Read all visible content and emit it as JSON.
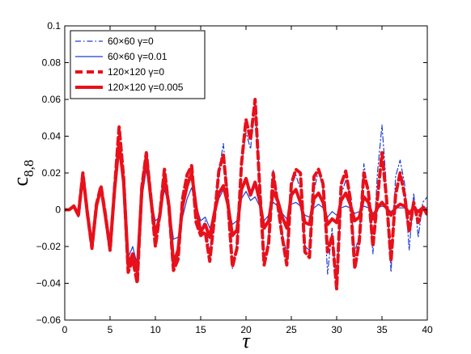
{
  "chart_data": {
    "type": "line",
    "title": "",
    "xlabel": "τ",
    "ylabel_main": "c",
    "ylabel_sub": "8,8",
    "xlim": [
      0,
      40
    ],
    "ylim": [
      -0.06,
      0.1
    ],
    "xticks": [
      0,
      5,
      10,
      15,
      20,
      25,
      30,
      35,
      40
    ],
    "xtick_labels": [
      "0",
      "5",
      "10",
      "15",
      "20",
      "25",
      "30",
      "35",
      "40"
    ],
    "yticks": [
      -0.06,
      -0.04,
      -0.02,
      0,
      0.02,
      0.04,
      0.06,
      0.08,
      0.1
    ],
    "ytick_labels": [
      "−0.06",
      "−0.04",
      "−0.02",
      "0",
      "0.02",
      "0.04",
      "0.06",
      "0.08",
      "0.1"
    ],
    "grid": false,
    "legend_position": "top-left",
    "series": [
      {
        "name": "60×60 γ=0",
        "color": "#1f3fd6",
        "style": "dashdot",
        "x": [
          0,
          0.5,
          1,
          1.5,
          2,
          2.5,
          3,
          3.5,
          4,
          4.5,
          5,
          5.5,
          6,
          6.5,
          7,
          7.5,
          8,
          8.5,
          9,
          9.5,
          10,
          10.5,
          11,
          11.5,
          12,
          12.5,
          13,
          13.5,
          14,
          14.5,
          15,
          15.5,
          16,
          16.5,
          17,
          17.5,
          18,
          18.5,
          19,
          19.5,
          20,
          20.5,
          21,
          21.5,
          22,
          22.5,
          23,
          23.5,
          24,
          24.5,
          25,
          25.5,
          26,
          26.5,
          27,
          27.5,
          28,
          28.5,
          29,
          29.5,
          30,
          30.5,
          31,
          31.5,
          32,
          32.5,
          33,
          33.5,
          34,
          34.5,
          35,
          35.5,
          36,
          36.5,
          37,
          37.5,
          38,
          38.5,
          39,
          39.5,
          40
        ],
        "y": [
          0,
          0,
          0.001,
          -0.004,
          0.019,
          -0.003,
          -0.02,
          0.002,
          0.012,
          -0.004,
          -0.021,
          0.012,
          0.036,
          0.016,
          -0.031,
          -0.025,
          -0.035,
          0.011,
          0.028,
          0.006,
          -0.017,
          -0.002,
          0.02,
          0.001,
          -0.032,
          -0.025,
          0.006,
          0.018,
          0.016,
          -0.006,
          -0.011,
          -0.006,
          -0.024,
          -0.004,
          0.021,
          0.036,
          0.008,
          -0.032,
          -0.018,
          0.023,
          0.042,
          0.033,
          0.059,
          0.015,
          -0.028,
          -0.015,
          0.022,
          0.003,
          -0.013,
          -0.024,
          0.013,
          0.019,
          0.011,
          -0.02,
          -0.022,
          0.01,
          0.022,
          0.011,
          -0.035,
          -0.01,
          -0.042,
          0.008,
          0.016,
          0.008,
          -0.023,
          -0.014,
          0.025,
          0.01,
          -0.024,
          0.02,
          0.046,
          0.012,
          -0.034,
          0.018,
          0.027,
          0.014,
          -0.022,
          0.009,
          -0.015,
          0.004,
          0.007
        ]
      },
      {
        "name": "60×60 γ=0.01",
        "color": "#1f3fd6",
        "style": "solid",
        "x": [
          0,
          0.5,
          1,
          1.5,
          2,
          2.5,
          3,
          3.5,
          4,
          4.5,
          5,
          5.5,
          6,
          6.5,
          7,
          7.5,
          8,
          8.5,
          9,
          9.5,
          10,
          10.5,
          11,
          11.5,
          12,
          12.5,
          13,
          13.5,
          14,
          14.5,
          15,
          15.5,
          16,
          16.5,
          17,
          17.5,
          18,
          18.5,
          19,
          19.5,
          20,
          20.5,
          21,
          21.5,
          22,
          22.5,
          23,
          23.5,
          24,
          24.5,
          25,
          25.5,
          26,
          26.5,
          27,
          27.5,
          28,
          28.5,
          29,
          29.5,
          30,
          30.5,
          31,
          31.5,
          32,
          32.5,
          33,
          33.5,
          34,
          34.5,
          35,
          35.5,
          36,
          36.5,
          37,
          37.5,
          38,
          38.5,
          39,
          39.5,
          40
        ],
        "y": [
          0,
          0,
          0.001,
          -0.004,
          0.018,
          -0.003,
          -0.018,
          0.001,
          0.01,
          -0.005,
          -0.02,
          0.01,
          0.033,
          0.014,
          -0.026,
          -0.02,
          -0.03,
          0.006,
          0.022,
          0.005,
          -0.006,
          -0.004,
          0.011,
          0.002,
          -0.016,
          -0.015,
          -0.004,
          0.006,
          0.012,
          0.002,
          -0.006,
          -0.004,
          -0.01,
          -0.003,
          0.006,
          0.011,
          0.002,
          -0.008,
          -0.006,
          0.006,
          0.01,
          0.005,
          0.007,
          0.002,
          -0.006,
          -0.003,
          0.004,
          0.002,
          -0.002,
          -0.005,
          0.003,
          0.004,
          0.002,
          -0.003,
          -0.004,
          0.001,
          0.003,
          0.001,
          -0.004,
          -0.001,
          -0.003,
          0.001,
          0.002,
          0.001,
          -0.002,
          -0.001,
          0.002,
          0.001,
          -0.002,
          0.001,
          0.002,
          0.001,
          -0.001,
          0.001,
          0.001,
          0.001,
          -0.001,
          0.001,
          -0.001,
          0.001,
          0.001
        ]
      },
      {
        "name": "120×120 γ=0",
        "color": "#e8101a",
        "style": "dash",
        "x": [
          0,
          0.5,
          1,
          1.5,
          2,
          2.5,
          3,
          3.5,
          4,
          4.5,
          5,
          5.5,
          6,
          6.5,
          7,
          7.5,
          8,
          8.5,
          9,
          9.5,
          10,
          10.5,
          11,
          11.5,
          12,
          12.5,
          13,
          13.5,
          14,
          14.5,
          15,
          15.5,
          16,
          16.5,
          17,
          17.5,
          18,
          18.5,
          19,
          19.5,
          20,
          20.5,
          21,
          21.5,
          22,
          22.5,
          23,
          23.5,
          24,
          24.5,
          25,
          25.5,
          26,
          26.5,
          27,
          27.5,
          28,
          28.5,
          29,
          29.5,
          30,
          30.5,
          31,
          31.5,
          32,
          32.5,
          33,
          33.5,
          34,
          34.5,
          35,
          35.5,
          36,
          36.5,
          37,
          37.5,
          38,
          38.5,
          39,
          39.5,
          40
        ],
        "y": [
          0,
          0,
          0.002,
          -0.003,
          0.02,
          -0.002,
          -0.021,
          0.003,
          0.013,
          -0.003,
          -0.022,
          0.012,
          0.045,
          0.017,
          -0.034,
          -0.027,
          -0.04,
          0.012,
          0.031,
          0.007,
          -0.02,
          -0.002,
          0.022,
          0.001,
          -0.033,
          -0.027,
          0.006,
          0.019,
          0.024,
          -0.007,
          -0.014,
          -0.012,
          -0.028,
          -0.005,
          0.021,
          0.03,
          0.004,
          -0.031,
          -0.021,
          0.025,
          0.049,
          0.038,
          0.06,
          0.013,
          -0.03,
          -0.018,
          0.02,
          0.003,
          -0.015,
          -0.03,
          0.014,
          0.022,
          0.02,
          -0.023,
          -0.026,
          0.018,
          0.022,
          0.014,
          -0.023,
          -0.014,
          -0.043,
          0.014,
          0.021,
          0.006,
          -0.032,
          -0.017,
          0.02,
          0.01,
          -0.02,
          0.006,
          0.031,
          0.006,
          -0.028,
          0.008,
          0.02,
          0.008,
          -0.012,
          0.004,
          -0.007,
          0.002,
          -0.003
        ]
      },
      {
        "name": "120×120 γ=0.005",
        "color": "#e8101a",
        "style": "solid-thick",
        "x": [
          0,
          0.5,
          1,
          1.5,
          2,
          2.5,
          3,
          3.5,
          4,
          4.5,
          5,
          5.5,
          6,
          6.5,
          7,
          7.5,
          8,
          8.5,
          9,
          9.5,
          10,
          10.5,
          11,
          11.5,
          12,
          12.5,
          13,
          13.5,
          14,
          14.5,
          15,
          15.5,
          16,
          16.5,
          17,
          17.5,
          18,
          18.5,
          19,
          19.5,
          20,
          20.5,
          21,
          21.5,
          22,
          22.5,
          23,
          23.5,
          24,
          24.5,
          25,
          25.5,
          26,
          26.5,
          27,
          27.5,
          28,
          28.5,
          29,
          29.5,
          30,
          30.5,
          31,
          31.5,
          32,
          32.5,
          33,
          33.5,
          34,
          34.5,
          35,
          35.5,
          36,
          36.5,
          37,
          37.5,
          38,
          38.5,
          39,
          39.5,
          40
        ],
        "y": [
          0,
          0,
          0.002,
          -0.003,
          0.019,
          -0.002,
          -0.02,
          0.002,
          0.012,
          -0.004,
          -0.021,
          0.011,
          0.036,
          0.015,
          -0.03,
          -0.024,
          -0.034,
          0.01,
          0.029,
          0.006,
          -0.014,
          -0.003,
          0.018,
          0.002,
          -0.029,
          -0.022,
          0.002,
          0.013,
          0.02,
          0.001,
          -0.012,
          -0.008,
          -0.015,
          -0.002,
          0.009,
          0.013,
          0.003,
          -0.014,
          -0.011,
          0.011,
          0.017,
          0.008,
          0.015,
          0.005,
          -0.01,
          -0.006,
          0.01,
          0.005,
          -0.004,
          -0.01,
          0.008,
          0.011,
          0.004,
          -0.007,
          -0.008,
          0.006,
          0.009,
          0.004,
          -0.008,
          -0.005,
          -0.007,
          0.005,
          0.009,
          0.003,
          -0.006,
          -0.004,
          0.007,
          0.004,
          -0.005,
          0.001,
          0.004,
          0.001,
          -0.003,
          0.001,
          0.003,
          0.002,
          -0.002,
          0.001,
          -0.001,
          0.001,
          -0.001
        ]
      }
    ]
  }
}
